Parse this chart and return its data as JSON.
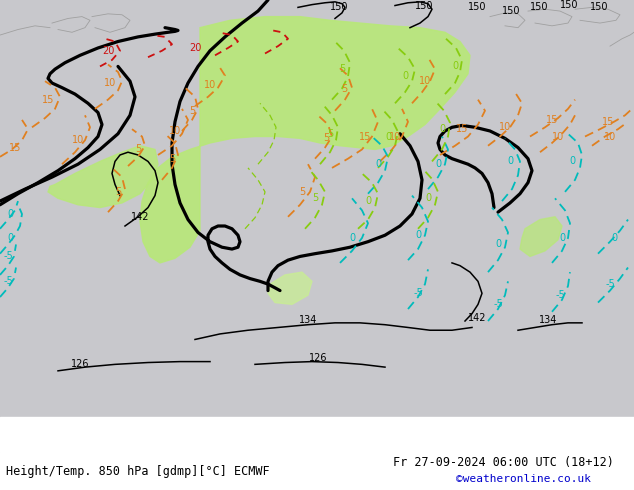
{
  "title_left": "Height/Temp. 850 hPa [gdmp][°C] ECMWF",
  "title_right": "Fr 27-09-2024 06:00 UTC (18+12)",
  "credit": "©weatheronline.co.uk",
  "bg_color": "#c8c8cc",
  "green_fill": "#b8e878",
  "green_fill2": "#c8f090",
  "fig_w": 6.34,
  "fig_h": 4.9,
  "dpi": 100,
  "black_thick_lw": 2.3,
  "black_thin_lw": 1.1,
  "temp_lw": 1.3,
  "orange": "#e08020",
  "red": "#cc1010",
  "cyan": "#00bbbb",
  "lgreen": "#88cc10",
  "gray_coast": "#a0a0a0",
  "label_fs": 7
}
